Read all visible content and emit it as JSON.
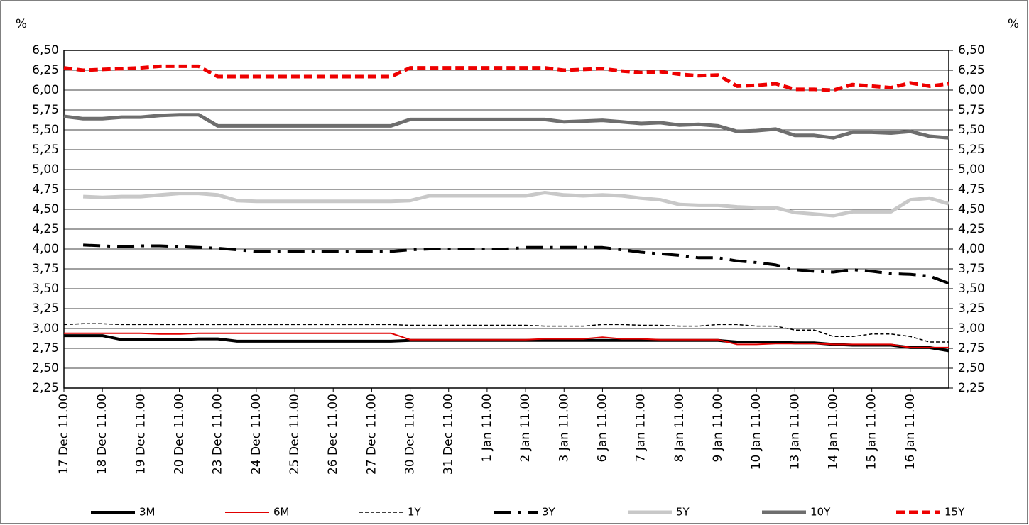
{
  "chart_data": {
    "type": "line",
    "y_axis_title": "%",
    "y2_axis_title": "%",
    "categories": [
      "17 Dec 11.00",
      null,
      "18 Dec 11.00",
      null,
      "19 Dec 11.00",
      null,
      "20 Dec 11.00",
      null,
      "23 Dec 11.00",
      null,
      "24 Dec 11.00",
      null,
      "25 Dec 11.00",
      null,
      "26 Dec 11.00",
      null,
      "27 Dec 11.00",
      null,
      "30 Dec 11.00",
      null,
      "31 Dec 11.00",
      null,
      "1 Jan 11.00",
      null,
      "2 Jan 11.00",
      null,
      "3 Jan 11.00",
      null,
      "6 Jan 11.00",
      null,
      "7 Jan 11.00",
      null,
      "8 Jan 11.00",
      null,
      "9 Jan 11.00",
      null,
      "10 Jan 11.00",
      null,
      "13 Jan 11.00",
      null,
      "14 Jan 11.00",
      null,
      "15 Jan 11.00",
      null,
      "16 Jan 11.00",
      null,
      null
    ],
    "ylim": [
      2.25,
      6.5
    ],
    "yticks": [
      {
        "value": 2.25,
        "label": "2,25"
      },
      {
        "value": 2.5,
        "label": "2,50"
      },
      {
        "value": 2.75,
        "label": "2,75"
      },
      {
        "value": 3.0,
        "label": "3,00"
      },
      {
        "value": 3.25,
        "label": "3,25"
      },
      {
        "value": 3.5,
        "label": "3,50"
      },
      {
        "value": 3.75,
        "label": "3,75"
      },
      {
        "value": 4.0,
        "label": "4,00"
      },
      {
        "value": 4.25,
        "label": "4,25"
      },
      {
        "value": 4.5,
        "label": "4,50"
      },
      {
        "value": 4.75,
        "label": "4,75"
      },
      {
        "value": 5.0,
        "label": "5,00"
      },
      {
        "value": 5.25,
        "label": "5,25"
      },
      {
        "value": 5.5,
        "label": "5,50"
      },
      {
        "value": 5.75,
        "label": "5,75"
      },
      {
        "value": 6.0,
        "label": "6,00"
      },
      {
        "value": 6.25,
        "label": "6,25"
      },
      {
        "value": 6.5,
        "label": "6,50"
      }
    ],
    "y2lim": [
      2.25,
      6.5
    ],
    "y2ticks": [
      {
        "value": 2.25,
        "label": "2,25"
      },
      {
        "value": 2.5,
        "label": "2,50"
      },
      {
        "value": 2.75,
        "label": "2,75"
      },
      {
        "value": 3.0,
        "label": "3,00"
      },
      {
        "value": 3.25,
        "label": "3,25"
      },
      {
        "value": 3.5,
        "label": "3,50"
      },
      {
        "value": 3.75,
        "label": "3,75"
      },
      {
        "value": 4.0,
        "label": "4,00"
      },
      {
        "value": 4.25,
        "label": "4,25"
      },
      {
        "value": 4.5,
        "label": "4,50"
      },
      {
        "value": 4.75,
        "label": "4,75"
      },
      {
        "value": 5.0,
        "label": "5,00"
      },
      {
        "value": 5.25,
        "label": "5,25"
      },
      {
        "value": 5.5,
        "label": "5,50"
      },
      {
        "value": 5.75,
        "label": "5,75"
      },
      {
        "value": 6.0,
        "label": "6,00"
      },
      {
        "value": 6.25,
        "label": "6,25"
      },
      {
        "value": 6.5,
        "label": "6,50"
      }
    ],
    "grid": true,
    "legend": "bottom",
    "series": [
      {
        "name": "3M",
        "color": "#000000",
        "line_width": 4,
        "dash": "none",
        "values": [
          2.91,
          2.91,
          2.91,
          2.86,
          2.86,
          2.86,
          2.86,
          2.87,
          2.87,
          2.84,
          2.84,
          2.84,
          2.84,
          2.84,
          2.84,
          2.84,
          2.84,
          2.84,
          2.85,
          2.85,
          2.85,
          2.85,
          2.85,
          2.85,
          2.85,
          2.85,
          2.85,
          2.85,
          2.85,
          2.85,
          2.85,
          2.85,
          2.85,
          2.85,
          2.85,
          2.83,
          2.83,
          2.83,
          2.82,
          2.82,
          2.8,
          2.79,
          2.79,
          2.79,
          2.76,
          2.76,
          2.72
        ]
      },
      {
        "name": "6M",
        "color": "#e00000",
        "line_width": 2,
        "dash": "none",
        "values": [
          2.94,
          2.94,
          2.94,
          2.94,
          2.94,
          2.93,
          2.93,
          2.94,
          2.94,
          2.94,
          2.94,
          2.94,
          2.94,
          2.94,
          2.94,
          2.94,
          2.94,
          2.94,
          2.86,
          2.86,
          2.86,
          2.86,
          2.86,
          2.86,
          2.86,
          2.87,
          2.87,
          2.87,
          2.89,
          2.87,
          2.87,
          2.86,
          2.86,
          2.86,
          2.86,
          2.8,
          2.8,
          2.81,
          2.81,
          2.81,
          2.8,
          2.8,
          2.8,
          2.8,
          2.76,
          2.76,
          2.76
        ]
      },
      {
        "name": "1Y",
        "color": "#000000",
        "line_width": 1.5,
        "dash": "5 3",
        "values": [
          3.05,
          3.06,
          3.06,
          3.05,
          3.05,
          3.05,
          3.05,
          3.05,
          3.05,
          3.05,
          3.05,
          3.05,
          3.05,
          3.05,
          3.05,
          3.05,
          3.05,
          3.05,
          3.04,
          3.04,
          3.04,
          3.04,
          3.04,
          3.04,
          3.04,
          3.03,
          3.03,
          3.03,
          3.05,
          3.05,
          3.04,
          3.04,
          3.03,
          3.03,
          3.05,
          3.05,
          3.03,
          3.03,
          2.98,
          2.98,
          2.9,
          2.9,
          2.93,
          2.93,
          2.9,
          2.83,
          2.83
        ]
      },
      {
        "name": "3Y",
        "color": "#000000",
        "line_width": 4,
        "dash": "24 10 4 10",
        "values": [
          null,
          4.05,
          4.04,
          4.03,
          4.04,
          4.04,
          4.03,
          4.02,
          4.01,
          3.99,
          3.97,
          3.97,
          3.97,
          3.97,
          3.97,
          3.97,
          3.97,
          3.97,
          3.99,
          4.0,
          4.0,
          4.0,
          4.0,
          4.0,
          4.02,
          4.02,
          4.02,
          4.02,
          4.02,
          3.99,
          3.96,
          3.94,
          3.92,
          3.89,
          3.89,
          3.85,
          3.83,
          3.8,
          3.74,
          3.72,
          3.71,
          3.74,
          3.72,
          3.69,
          3.68,
          3.66,
          3.57
        ]
      },
      {
        "name": "5Y",
        "color": "#c8c8c8",
        "line_width": 5,
        "dash": "none",
        "values": [
          null,
          4.66,
          4.65,
          4.66,
          4.66,
          4.68,
          4.7,
          4.7,
          4.68,
          4.61,
          4.6,
          4.6,
          4.6,
          4.6,
          4.6,
          4.6,
          4.6,
          4.6,
          4.61,
          4.67,
          4.67,
          4.67,
          4.67,
          4.67,
          4.67,
          4.71,
          4.68,
          4.67,
          4.68,
          4.67,
          4.64,
          4.62,
          4.56,
          4.55,
          4.55,
          4.53,
          4.52,
          4.52,
          4.46,
          4.44,
          4.42,
          4.47,
          4.47,
          4.47,
          4.62,
          4.64,
          4.57
        ]
      },
      {
        "name": "10Y",
        "color": "#6e6e6e",
        "line_width": 5,
        "dash": "none",
        "values": [
          5.67,
          5.64,
          5.64,
          5.66,
          5.66,
          5.68,
          5.69,
          5.69,
          5.55,
          5.55,
          5.55,
          5.55,
          5.55,
          5.55,
          5.55,
          5.55,
          5.55,
          5.55,
          5.63,
          5.63,
          5.63,
          5.63,
          5.63,
          5.63,
          5.63,
          5.63,
          5.6,
          5.61,
          5.62,
          5.6,
          5.58,
          5.59,
          5.56,
          5.57,
          5.55,
          5.48,
          5.49,
          5.51,
          5.43,
          5.43,
          5.4,
          5.47,
          5.47,
          5.46,
          5.48,
          5.42,
          5.4
        ]
      },
      {
        "name": "15Y",
        "color": "#ee0000",
        "line_width": 5,
        "dash": "12 6",
        "values": [
          6.28,
          6.25,
          6.26,
          6.27,
          6.28,
          6.3,
          6.3,
          6.3,
          6.17,
          6.17,
          6.17,
          6.17,
          6.17,
          6.17,
          6.17,
          6.17,
          6.17,
          6.17,
          6.28,
          6.28,
          6.28,
          6.28,
          6.28,
          6.28,
          6.28,
          6.28,
          6.25,
          6.26,
          6.27,
          6.24,
          6.22,
          6.23,
          6.2,
          6.18,
          6.19,
          6.05,
          6.06,
          6.08,
          6.01,
          6.01,
          6.0,
          6.07,
          6.05,
          6.03,
          6.09,
          6.05,
          6.08
        ]
      }
    ]
  }
}
